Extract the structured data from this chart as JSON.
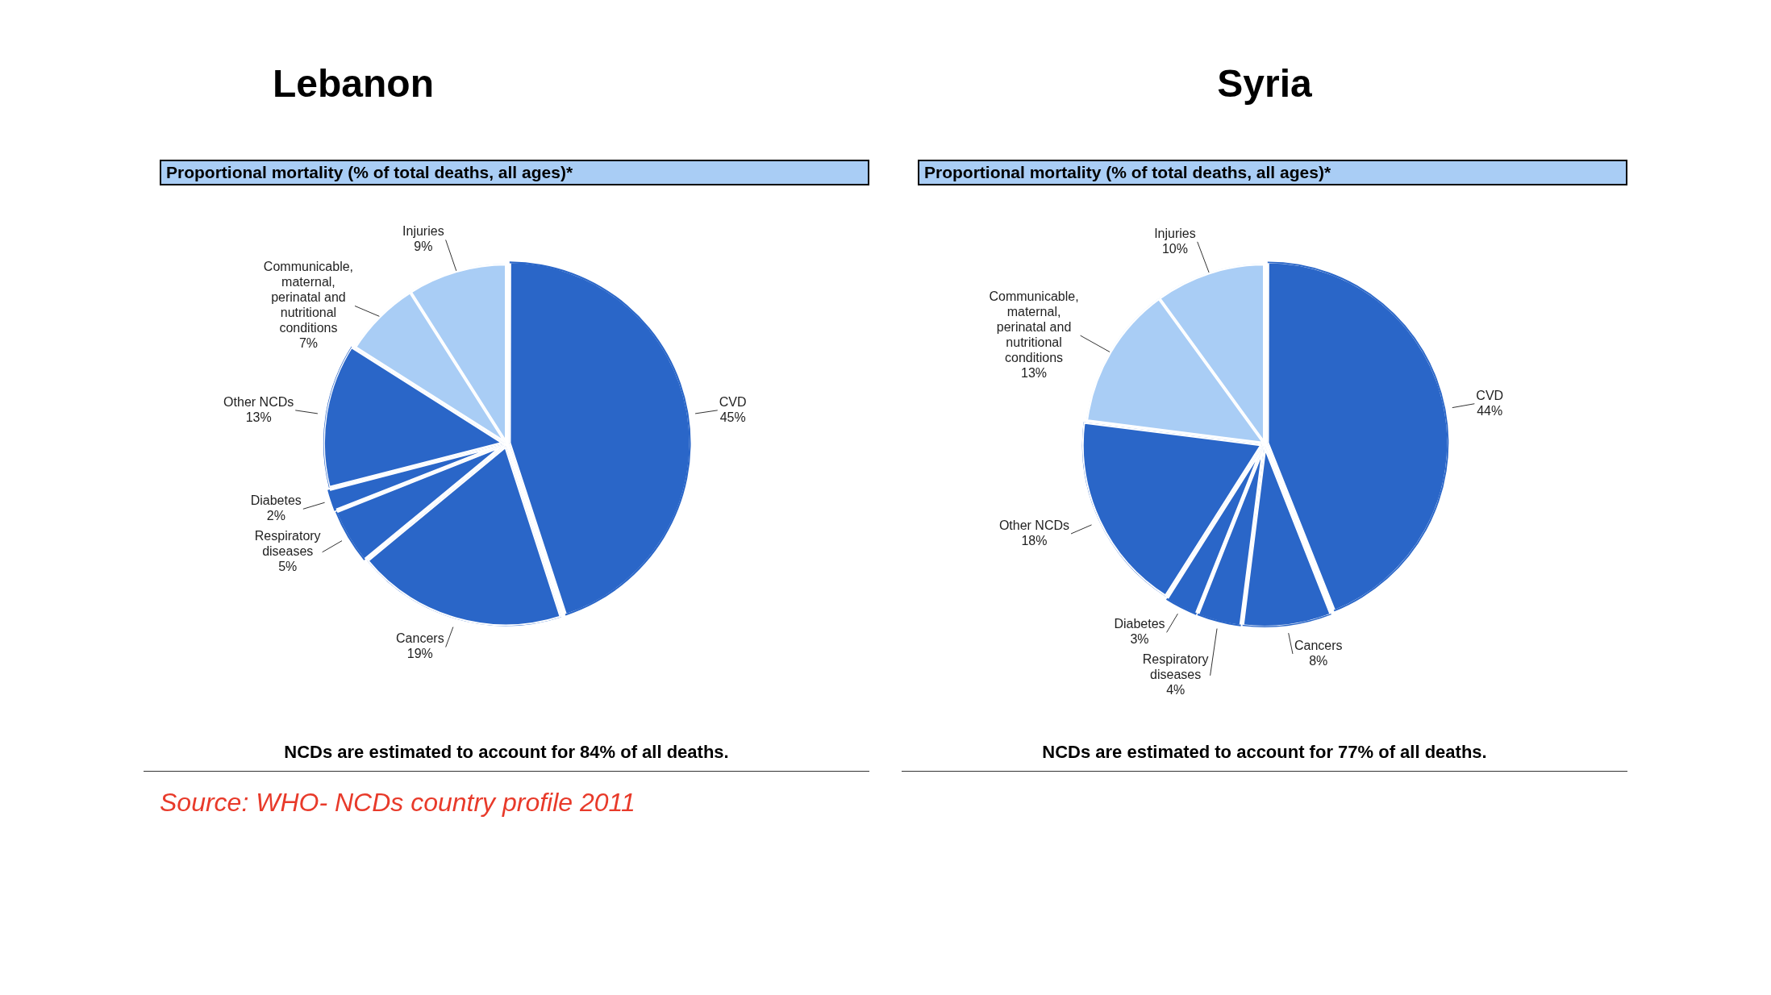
{
  "chart_data": [
    {
      "type": "pie",
      "title": "Lebanon",
      "subtitle": "Proportional mortality (% of total deaths, all ages)*",
      "categories": [
        "CVD",
        "Cancers",
        "Respiratory diseases",
        "Diabetes",
        "Other NCDs",
        "Communicable, maternal, perinatal and nutritional conditions",
        "Injuries"
      ],
      "values": [
        45,
        19,
        5,
        2,
        13,
        7,
        9
      ],
      "value_labels": [
        "45%",
        "19%",
        "5%",
        "2%",
        "13%",
        "7%",
        "9%"
      ],
      "colors": [
        "#2a66c8",
        "#2a66c8",
        "#2a66c8",
        "#2a66c8",
        "#2a66c8",
        "#a9cdf5",
        "#a9cdf5"
      ],
      "legend": false,
      "annotations": [
        "NCDs are estimated to account for 84% of all deaths.",
        "Source: WHO- NCDs country profile 2011"
      ]
    },
    {
      "type": "pie",
      "title": "Syria",
      "subtitle": "Proportional mortality (% of total deaths, all ages)*",
      "categories": [
        "CVD",
        "Cancers",
        "Respiratory diseases",
        "Diabetes",
        "Other NCDs",
        "Communicable, maternal, perinatal and nutritional conditions",
        "Injuries"
      ],
      "values": [
        44,
        8,
        4,
        3,
        18,
        13,
        10
      ],
      "value_labels": [
        "44%",
        "8%",
        "4%",
        "3%",
        "18%",
        "13%",
        "10%"
      ],
      "colors": [
        "#2a66c8",
        "#2a66c8",
        "#2a66c8",
        "#2a66c8",
        "#2a66c8",
        "#a9cdf5",
        "#a9cdf5"
      ],
      "legend": false,
      "annotations": [
        "NCDs are estimated to account for 77% of all deaths."
      ]
    }
  ]
}
